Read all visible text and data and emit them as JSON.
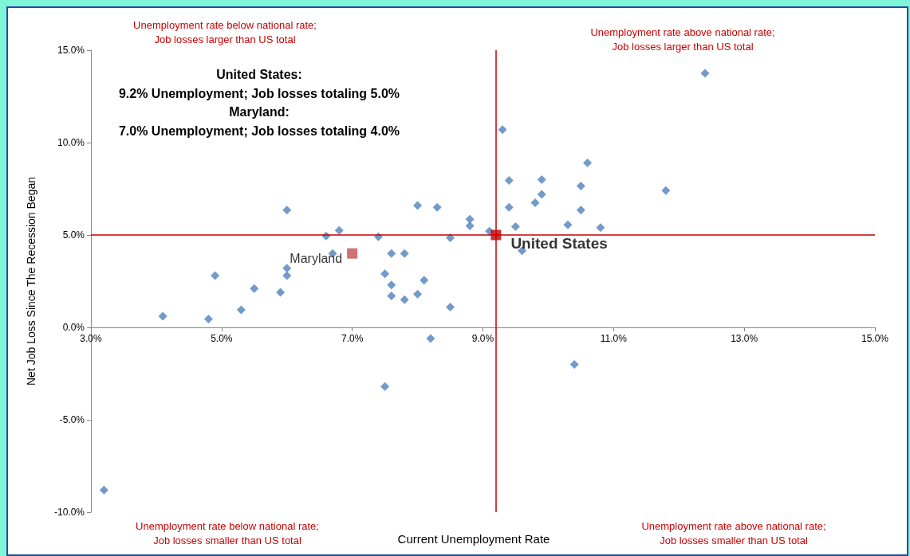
{
  "chart_data": {
    "type": "scatter",
    "xlabel": "Current Unemployment Rate",
    "ylabel": "Net Job Loss Since The Recession Began",
    "annotations": [
      "Unemployment rate below national rate;\nJob losses larger than US total",
      "Unemployment rate above national rate;\nJob losses larger than US total",
      "Unemployment rate below national rate;\nJob losses smaller than US total",
      "Unemployment rate above national rate;\nJob losses smaller than US total",
      "United States:\n9.2% Unemployment; Job losses totaling 5.0%\nMaryland:\n7.0% Unemployment; Job losses totaling 4.0%"
    ],
    "series": [
      {
        "color": "#4f81bd",
        "marker": "diamond",
        "x": [
          3.2,
          4.1,
          4.8,
          4.9,
          5.3,
          5.5,
          5.9,
          6.0,
          6.0,
          6.0,
          6.6,
          6.7,
          6.8,
          7.4,
          7.5,
          7.5,
          7.6,
          7.6,
          7.6,
          7.8,
          7.8,
          8.0,
          8.0,
          8.1,
          8.2,
          8.3,
          8.5,
          8.5,
          8.8,
          8.8,
          9.1,
          9.3,
          9.4,
          9.4,
          9.5,
          9.6,
          9.8,
          9.9,
          9.9,
          10.3,
          10.5,
          10.5,
          10.6,
          10.4,
          10.8,
          11.8,
          12.4
        ],
        "values": [
          -8.8,
          0.6,
          0.45,
          2.8,
          0.95,
          2.1,
          1.9,
          6.35,
          3.2,
          2.8,
          4.95,
          4.0,
          5.25,
          4.9,
          2.9,
          -3.2,
          4.0,
          2.3,
          1.7,
          4.0,
          1.5,
          6.6,
          1.8,
          2.55,
          -0.6,
          6.5,
          4.85,
          1.1,
          5.85,
          5.5,
          5.2,
          10.7,
          7.95,
          6.5,
          5.45,
          4.15,
          6.75,
          8.0,
          7.2,
          5.55,
          6.35,
          7.65,
          8.9,
          -2.0,
          5.4,
          7.4,
          13.75
        ]
      },
      {
        "name": "Maryland",
        "color": "#c0504d",
        "marker": "square",
        "x": [
          7.0
        ],
        "values": [
          4.0
        ]
      },
      {
        "name": "United States",
        "color": "#c00000",
        "marker": "square",
        "x": [
          9.2
        ],
        "values": [
          5.0
        ]
      }
    ],
    "xlim": [
      3,
      15
    ],
    "xticks": [
      {
        "value": 3,
        "label": "3.0%"
      },
      {
        "value": 5,
        "label": "5.0%"
      },
      {
        "value": 7,
        "label": "7.0%"
      },
      {
        "value": 9,
        "label": "9.0%"
      },
      {
        "value": 11,
        "label": "11.0%"
      },
      {
        "value": 13,
        "label": "13.0%"
      },
      {
        "value": 15,
        "label": "15.0%"
      }
    ],
    "ylim": [
      -10,
      15
    ],
    "yticks": [
      {
        "value": -10,
        "label": "-10.0%"
      },
      {
        "value": -5,
        "label": "-5.0%"
      },
      {
        "value": 0,
        "label": "0.0%"
      },
      {
        "value": 5,
        "label": "5.0%"
      },
      {
        "value": 10,
        "label": "10.0%"
      },
      {
        "value": 15,
        "label": "15.0%"
      }
    ],
    "ref_lines": [
      {
        "axis": "x",
        "value": 9.2,
        "color": "#c00000"
      },
      {
        "axis": "y",
        "value": 5,
        "color": "#c00000"
      }
    ],
    "grid": false,
    "legend": false
  }
}
